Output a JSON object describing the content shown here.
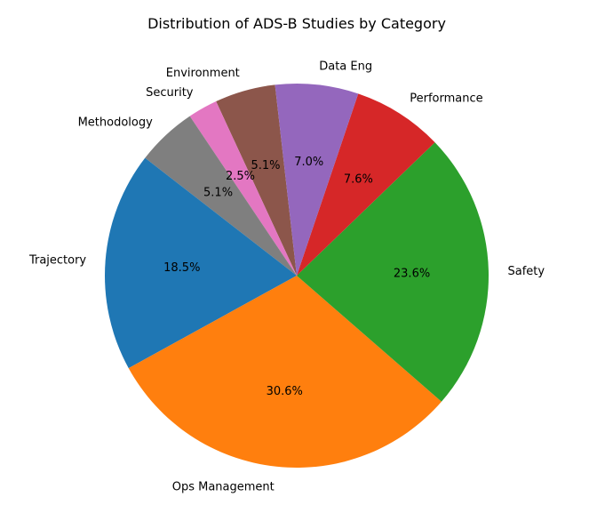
{
  "chart_data": {
    "type": "pie",
    "title": "Distribution of ADS-B Studies by Category",
    "start_angle_deg": 90,
    "direction": "counterclockwise",
    "slices": [
      {
        "label": "Ops Management",
        "value": 30.6,
        "pct_label": "30.6%",
        "color": "#ff7f0e"
      },
      {
        "label": "Safety",
        "value": 23.6,
        "pct_label": "23.6%",
        "color": "#2ca02c"
      },
      {
        "label": "Performance",
        "value": 7.6,
        "pct_label": "7.6%",
        "color": "#d62728"
      },
      {
        "label": "Data Eng",
        "value": 7.0,
        "pct_label": "7.0%",
        "color": "#9467bd"
      },
      {
        "label": "Environment",
        "value": 5.1,
        "pct_label": "5.1%",
        "color": "#8c564b"
      },
      {
        "label": "Security",
        "value": 2.5,
        "pct_label": "2.5%",
        "color": "#e377c2"
      },
      {
        "label": "Methodology",
        "value": 5.1,
        "pct_label": "5.1%",
        "color": "#7f7f7f"
      },
      {
        "label": "Trajectory",
        "value": 18.5,
        "pct_label": "18.5%",
        "color": "#1f77b4"
      }
    ]
  }
}
